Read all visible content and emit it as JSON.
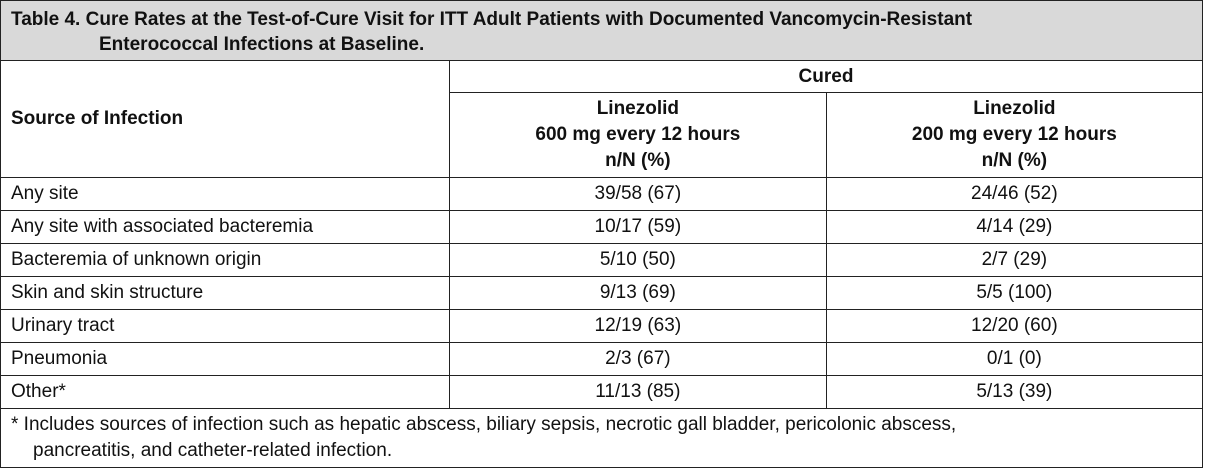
{
  "title": {
    "line1": "Table 4. Cure Rates at the Test-of-Cure Visit for ITT Adult Patients with Documented Vancomycin-Resistant",
    "line2": "Enterococcal Infections at Baseline."
  },
  "header": {
    "source": "Source of Infection",
    "group": "Cured",
    "col1": {
      "drug": "Linezolid",
      "dose": "600 mg every 12 hours",
      "unit": "n/N (%)"
    },
    "col2": {
      "drug": "Linezolid",
      "dose": "200 mg every 12 hours",
      "unit": "n/N (%)"
    }
  },
  "rows": [
    {
      "source": "Any site",
      "dose600": "39/58 (67)",
      "dose200": "24/46 (52)"
    },
    {
      "source": "Any site with associated bacteremia",
      "dose600": "10/17 (59)",
      "dose200": "4/14 (29)"
    },
    {
      "source": "Bacteremia of unknown origin",
      "dose600": "5/10 (50)",
      "dose200": "2/7 (29)"
    },
    {
      "source": "Skin and skin structure",
      "dose600": "9/13 (69)",
      "dose200": "5/5 (100)"
    },
    {
      "source": "Urinary tract",
      "dose600": "12/19 (63)",
      "dose200": "12/20 (60)"
    },
    {
      "source": "Pneumonia",
      "dose600": "2/3 (67)",
      "dose200": "0/1 (0)"
    },
    {
      "source": "Other*",
      "dose600": "11/13 (85)",
      "dose200": "5/13 (39)"
    }
  ],
  "footnote": {
    "line1": "* Includes sources of infection such as hepatic abscess, biliary sepsis, necrotic gall bladder, pericolonic abscess,",
    "line2": "pancreatitis, and catheter-related infection."
  }
}
